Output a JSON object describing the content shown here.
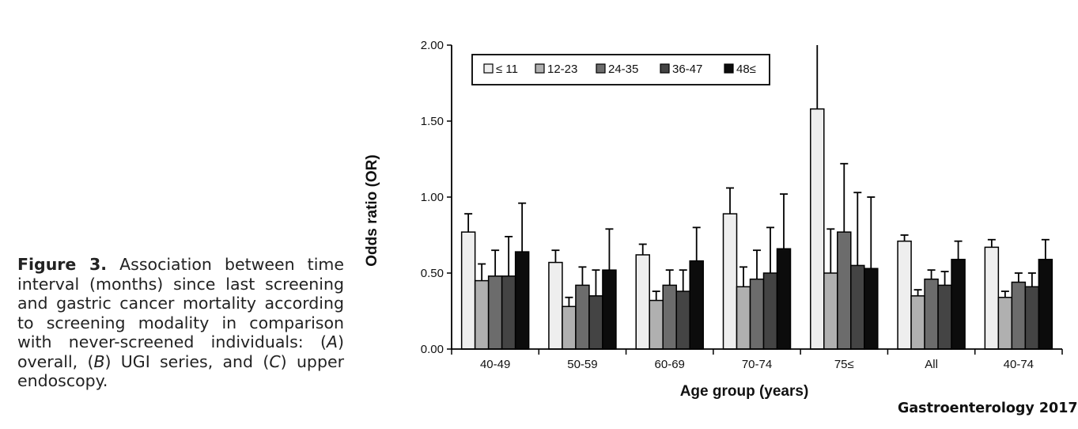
{
  "caption": {
    "figure_label": "Figure 3.",
    "text_1": "Association between time interval (months) since last screening and gastric cancer mortality according to screening modality in comparison with never-screened individuals: (",
    "ref_a": "A",
    "text_2": ") overall, (",
    "ref_b": "B",
    "text_3": ") UGI series, and (",
    "ref_c": "C",
    "text_4": ") upper endoscopy."
  },
  "source_label": "Gastroenterology 2017",
  "chart_data": {
    "type": "bar",
    "xlabel": "Age group (years)",
    "ylabel": "Odds ratio (OR)",
    "ylim": [
      0,
      2
    ],
    "yticks": [
      "0.00",
      "0.50",
      "1.00",
      "1.50",
      "2.00"
    ],
    "categories": [
      "40-49",
      "50-59",
      "60-69",
      "70-74",
      "75≤",
      "All",
      "40-74"
    ],
    "legend_position": "top-left",
    "error_bars": "upper",
    "series": [
      {
        "name": "≤ 11",
        "color": "#eeeeee",
        "values": [
          0.77,
          0.57,
          0.62,
          0.89,
          1.58,
          0.71,
          0.67
        ],
        "upper": [
          0.89,
          0.65,
          0.69,
          1.06,
          2.0,
          0.75,
          0.72
        ]
      },
      {
        "name": "12-23",
        "color": "#b0b0b0",
        "values": [
          0.45,
          0.28,
          0.32,
          0.41,
          0.5,
          0.35,
          0.34
        ],
        "upper": [
          0.56,
          0.34,
          0.38,
          0.54,
          0.79,
          0.39,
          0.38
        ]
      },
      {
        "name": "24-35",
        "color": "#6c6c6c",
        "values": [
          0.48,
          0.42,
          0.42,
          0.46,
          0.77,
          0.46,
          0.44
        ],
        "upper": [
          0.65,
          0.54,
          0.52,
          0.65,
          1.22,
          0.52,
          0.5
        ]
      },
      {
        "name": "36-47",
        "color": "#444444",
        "values": [
          0.48,
          0.35,
          0.38,
          0.5,
          0.55,
          0.42,
          0.41
        ],
        "upper": [
          0.74,
          0.52,
          0.52,
          0.8,
          1.03,
          0.51,
          0.5
        ]
      },
      {
        "name": "48≤",
        "color": "#0c0c0c",
        "values": [
          0.64,
          0.52,
          0.58,
          0.66,
          0.53,
          0.59,
          0.59
        ],
        "upper": [
          0.96,
          0.79,
          0.8,
          1.02,
          1.0,
          0.71,
          0.72
        ]
      }
    ]
  }
}
